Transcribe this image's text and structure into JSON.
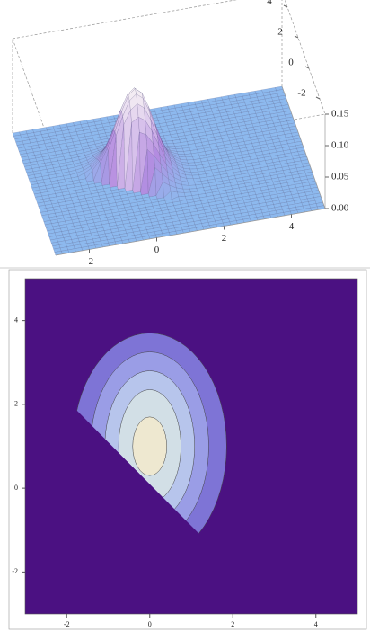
{
  "chart_data": [
    {
      "type": "surface3d",
      "xlim": [
        -3,
        5
      ],
      "ylim": [
        -3,
        5
      ],
      "zlim": [
        0,
        0.15
      ],
      "xticks": [
        -2,
        0,
        2,
        4
      ],
      "yticks": [
        -2,
        0,
        2,
        4
      ],
      "zticks": [
        {
          "value": 0,
          "label": "0.00"
        },
        0.05,
        {
          "value": 0.1,
          "label": "0.10"
        },
        0.15
      ],
      "peak": 0.14,
      "center": [
        0,
        1
      ],
      "sigma": [
        0.55,
        0.85
      ],
      "cut": 0.1,
      "floor_color": "#8db9ee",
      "mid_color": "#b48be0",
      "peak_color": "#f3ecf3"
    },
    {
      "type": "contour",
      "xlim": [
        -3,
        5
      ],
      "ylim": [
        -3,
        5
      ],
      "xticks": [
        -2,
        0,
        2,
        4
      ],
      "yticks": [
        -2,
        0,
        2,
        4
      ],
      "center": [
        0,
        1
      ],
      "rx": [
        1.85,
        1.42,
        1.08,
        0.75,
        0.41
      ],
      "ry": [
        2.7,
        2.25,
        1.8,
        1.35,
        0.7
      ],
      "colors": [
        "#7e74d6",
        "#9a9de6",
        "#b7c5ec",
        "#d2dfe6",
        "#eee8d0"
      ],
      "background": "#4b1182",
      "cut": 0.1
    }
  ]
}
